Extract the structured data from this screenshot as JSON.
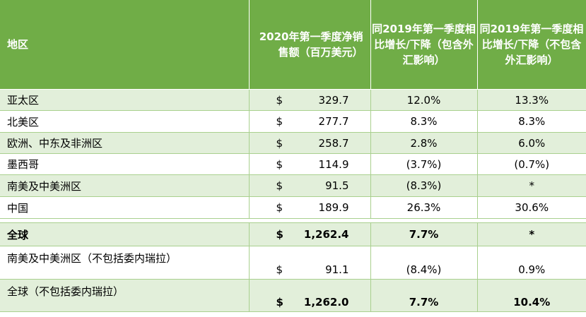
{
  "headers": {
    "region": "地区",
    "sales": "2020年第一季度净销售额（百万美元）",
    "growth_incl_fx": "同2019年第一季度相比增长/下降（包含外汇影响）",
    "growth_excl_fx": "同2019年第一季度相比增长/下降（不包含外汇影响）"
  },
  "rows": [
    {
      "region": "亚太区",
      "currency": "$",
      "amount": "329.7",
      "incl_fx": "12.0%",
      "excl_fx": "13.3%"
    },
    {
      "region": "北美区",
      "currency": "$",
      "amount": "277.7",
      "incl_fx": "8.3%",
      "excl_fx": "8.3%"
    },
    {
      "region": "欧洲、中东及非洲区",
      "currency": "$",
      "amount": "258.7",
      "incl_fx": "2.8%",
      "excl_fx": "6.0%"
    },
    {
      "region": "墨西哥",
      "currency": "$",
      "amount": "114.9",
      "incl_fx": "(3.7%)",
      "excl_fx": "(0.7%)"
    },
    {
      "region": "南美及中美洲区",
      "currency": "$",
      "amount": "91.5",
      "incl_fx": "(8.3%)",
      "excl_fx": "*"
    },
    {
      "region": "中国",
      "currency": "$",
      "amount": "189.9",
      "incl_fx": "26.3%",
      "excl_fx": "30.6%"
    }
  ],
  "total": {
    "region": "全球",
    "currency": "$",
    "amount": "1,262.4",
    "incl_fx": "7.7%",
    "excl_fx": "*"
  },
  "extra_rows": [
    {
      "region": "南美及中美洲区（不包括委内瑞拉）",
      "currency": "$",
      "amount": "91.1",
      "incl_fx": "(8.4%)",
      "excl_fx": "0.9%"
    },
    {
      "region": "全球（不包括委内瑞拉）",
      "currency": "$",
      "amount": "1,262.0",
      "incl_fx": "7.7%",
      "excl_fx": "10.4%"
    }
  ],
  "colors": {
    "header_bg": "#70ad47",
    "band": "#e2efda",
    "grid": "#a9d08e"
  }
}
